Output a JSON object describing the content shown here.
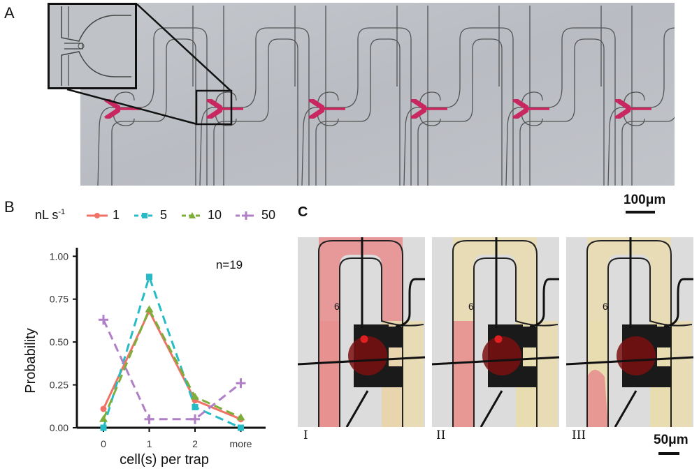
{
  "panels": {
    "a": "A",
    "b": "B",
    "c": "C"
  },
  "panel_a": {
    "scale_bar_label": "100μm",
    "arrow_color": "#c8285f",
    "trap_count": 6
  },
  "panel_c": {
    "scale_bar_label": "50μm",
    "frames": [
      {
        "label": "I",
        "chamber_number": "6",
        "marker": true
      },
      {
        "label": "II",
        "chamber_number": "6",
        "marker": true
      },
      {
        "label": "III",
        "chamber_number": "6",
        "marker": false
      }
    ],
    "colors": {
      "red_fill": "#e89090",
      "yellow_fill": "#e8dcb0",
      "marker": "#e02020"
    }
  },
  "legend": {
    "title": "nL s",
    "title_exp": "-1",
    "entries": [
      "1",
      "5",
      "10",
      "50"
    ]
  },
  "chart_data": {
    "type": "line",
    "annotation": "n=19",
    "xlabel": "cell(s) per trap",
    "ylabel": "Probability",
    "categories": [
      "0",
      "1",
      "2",
      "more"
    ],
    "yticks": [
      "0.00",
      "0.25",
      "0.50",
      "0.75",
      "1.00"
    ],
    "ylim": [
      0,
      1.05
    ],
    "grid": false,
    "legend_position": "top",
    "series": [
      {
        "name": "1",
        "values": [
          0.11,
          0.68,
          0.16,
          0.05
        ],
        "color": "#f07266",
        "marker": "circle",
        "dash": "solid"
      },
      {
        "name": "5",
        "values": [
          0.0,
          0.88,
          0.12,
          0.0
        ],
        "color": "#26bcc6",
        "marker": "square",
        "dash": "dashed"
      },
      {
        "name": "10",
        "values": [
          0.05,
          0.69,
          0.18,
          0.06
        ],
        "color": "#7cae3a",
        "marker": "triangle",
        "dash": "dashed"
      },
      {
        "name": "50",
        "values": [
          0.63,
          0.05,
          0.05,
          0.26
        ],
        "color": "#b07fc8",
        "marker": "plus",
        "dash": "dashed"
      }
    ]
  }
}
